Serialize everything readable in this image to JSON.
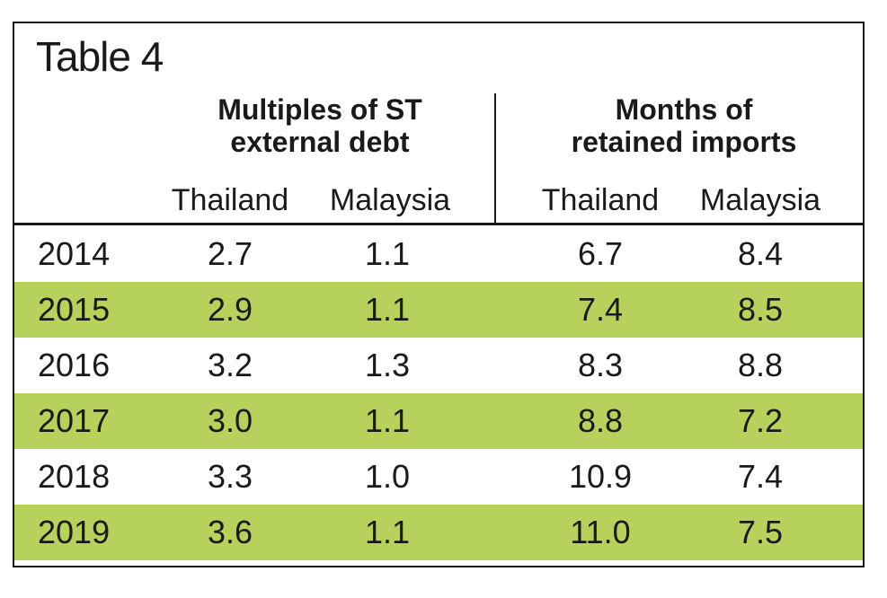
{
  "title": "Table 4",
  "groups": [
    {
      "line1": "Multiples of ST",
      "line2": "external debt"
    },
    {
      "line1": "Months of",
      "line2": "retained imports"
    }
  ],
  "subheaders": [
    "Thailand",
    "Malaysia",
    "Thailand",
    "Malaysia"
  ],
  "rows": [
    {
      "year": "2014",
      "v": [
        "2.7",
        "1.1",
        "6.7",
        "8.4"
      ]
    },
    {
      "year": "2015",
      "v": [
        "2.9",
        "1.1",
        "7.4",
        "8.5"
      ]
    },
    {
      "year": "2016",
      "v": [
        "3.2",
        "1.3",
        "8.3",
        "8.8"
      ]
    },
    {
      "year": "2017",
      "v": [
        "3.0",
        "1.1",
        "8.8",
        "7.2"
      ]
    },
    {
      "year": "2018",
      "v": [
        "3.3",
        "1.0",
        "10.9",
        "7.4"
      ]
    },
    {
      "year": "2019",
      "v": [
        "3.6",
        "1.1",
        "11.0",
        "7.5"
      ]
    }
  ],
  "colors": {
    "shade": "#b6d25c",
    "border": "#1a1a1a"
  }
}
